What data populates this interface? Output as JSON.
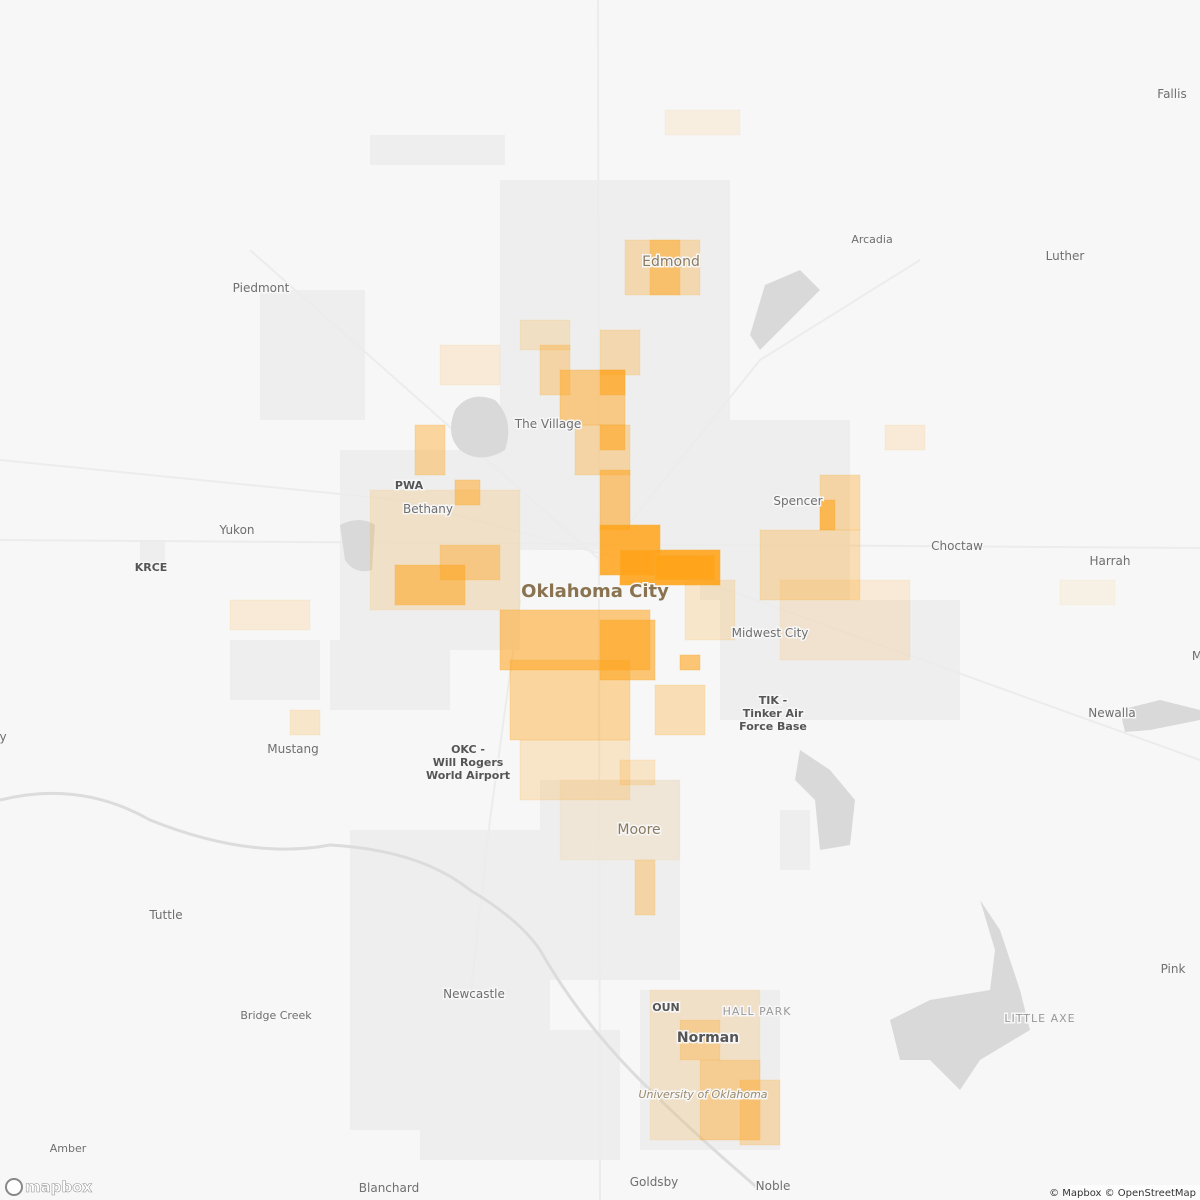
{
  "places": [
    {
      "label": "Fallis"
    },
    {
      "label": "Arcadia"
    },
    {
      "label": "Edmond"
    },
    {
      "label": "Luther"
    },
    {
      "label": "Piedmont"
    },
    {
      "label": "The Village"
    },
    {
      "label": "PWA"
    },
    {
      "label": "Bethany"
    },
    {
      "label": "Spencer"
    },
    {
      "label": "Yukon"
    },
    {
      "label": "KRCE"
    },
    {
      "label": "Choctaw"
    },
    {
      "label": "Harrah"
    },
    {
      "label": "Oklahoma City"
    },
    {
      "label": "Midwest City"
    },
    {
      "lines": [
        "TIK -",
        "Tinker Air",
        "Force Base"
      ]
    },
    {
      "label": "Mustang"
    },
    {
      "lines": [
        "OKC -",
        "Will Rogers",
        "World Airport"
      ]
    },
    {
      "label": "Newalla"
    },
    {
      "label": "Moore"
    },
    {
      "label": "Tuttle"
    },
    {
      "label": "Pink"
    },
    {
      "label": "Newcastle"
    },
    {
      "label": "Bridge Creek"
    },
    {
      "label": "OUN"
    },
    {
      "label": "HALL PARK"
    },
    {
      "label": "LITTLE AXE"
    },
    {
      "label": "Norman"
    },
    {
      "label": "University of Oklahoma"
    },
    {
      "label": "Amber"
    },
    {
      "label": "Blanchard"
    },
    {
      "label": "Goldsby"
    },
    {
      "label": "Noble"
    },
    {
      "label": "M"
    },
    {
      "label": "y"
    }
  ],
  "logo": "mapbox",
  "attribution": "© Mapbox © OpenStreetMap"
}
